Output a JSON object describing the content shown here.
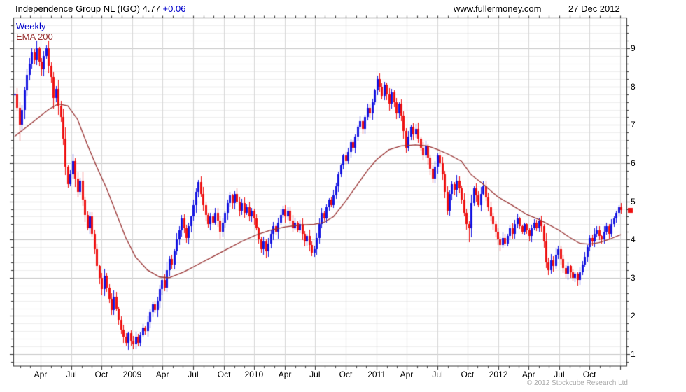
{
  "header": {
    "title": "Independence Group NL (IGO) 4.77",
    "change": "+0.06",
    "website": "www.fullermoney.com",
    "date": "27 Dec 2012"
  },
  "legend": {
    "timeframe": "Weekly",
    "indicator": "EMA 200"
  },
  "footer": {
    "copyright": "© 2012 Stockcube Research Ltd"
  },
  "colors": {
    "up_candle": "#1414e0",
    "down_candle": "#ee1111",
    "ema_line": "#993333",
    "accent_blue": "#0000cc",
    "grid_minor": "#eeeeee",
    "grid_major": "#c6c6c6",
    "grid_vertical": "#d6d6d6",
    "axis_border": "#333333",
    "label_gray": "#aaaaaa"
  },
  "chart_data": {
    "type": "candlestick",
    "title": "Independence Group NL (IGO)",
    "timeframe": "Weekly",
    "last_price": 4.77,
    "change": 0.06,
    "ylim": [
      0.69,
      9.8
    ],
    "y_major_ticks": [
      1,
      2,
      3,
      4,
      5,
      6,
      7,
      8,
      9
    ],
    "y_minor_step": 0.2,
    "grid": "on",
    "weeks": 252,
    "x_quarter_gridlines": [
      {
        "label": "Apr",
        "week": 10.7
      },
      {
        "label": "Jul",
        "week": 23.5
      },
      {
        "label": "Oct",
        "week": 35.9
      },
      {
        "label": "2009",
        "week": 48.7
      },
      {
        "label": "Apr",
        "week": 61.2
      },
      {
        "label": "Jul",
        "week": 73.9
      },
      {
        "label": "Oct",
        "week": 86.7
      },
      {
        "label": "2010",
        "week": 99.1
      },
      {
        "label": "Apr",
        "week": 111.9
      },
      {
        "label": "Jul",
        "week": 124.3
      },
      {
        "label": "Oct",
        "week": 137.1
      },
      {
        "label": "2011",
        "week": 149.9
      },
      {
        "label": "Apr",
        "week": 162.3
      },
      {
        "label": "Jul",
        "week": 175.1
      },
      {
        "label": "Oct",
        "week": 187.5
      },
      {
        "label": "2012",
        "week": 200.3
      },
      {
        "label": "Apr",
        "week": 212.8
      },
      {
        "label": "Jul",
        "week": 225.5
      },
      {
        "label": "Oct",
        "week": 238.0
      },
      {
        "label": "",
        "week": 250.7
      }
    ],
    "open_rule": "open equals previous close",
    "closes": [
      7.8,
      7.45,
      7.0,
      7.4,
      7.9,
      8.3,
      8.6,
      8.9,
      8.7,
      9.0,
      8.65,
      8.45,
      8.8,
      9.0,
      8.55,
      8.25,
      7.7,
      7.95,
      7.5,
      7.2,
      6.65,
      5.9,
      5.45,
      5.7,
      6.05,
      5.6,
      5.25,
      5.55,
      5.05,
      4.65,
      4.3,
      4.6,
      4.15,
      3.75,
      3.3,
      3.0,
      2.7,
      3.05,
      2.75,
      2.45,
      2.15,
      2.5,
      2.2,
      1.9,
      1.65,
      1.45,
      1.3,
      1.55,
      1.35,
      1.25,
      1.45,
      1.3,
      1.5,
      1.7,
      1.6,
      1.85,
      2.1,
      2.3,
      2.15,
      2.4,
      2.7,
      2.95,
      2.75,
      3.2,
      3.5,
      3.35,
      3.7,
      4.0,
      4.25,
      4.55,
      4.3,
      4.05,
      4.35,
      4.6,
      4.9,
      5.25,
      5.5,
      5.2,
      4.9,
      4.65,
      4.4,
      4.6,
      4.45,
      4.7,
      4.5,
      4.2,
      4.45,
      4.7,
      4.95,
      5.15,
      4.95,
      5.2,
      5.0,
      4.75,
      4.95,
      4.7,
      4.85,
      4.6,
      4.75,
      4.55,
      4.3,
      4.0,
      3.75,
      3.95,
      3.7,
      3.9,
      4.15,
      4.35,
      4.2,
      4.45,
      4.65,
      4.8,
      4.6,
      4.75,
      4.5,
      4.3,
      4.45,
      4.25,
      4.4,
      4.15,
      3.95,
      4.1,
      3.85,
      3.65,
      3.75,
      4.05,
      4.4,
      4.7,
      4.55,
      4.85,
      5.05,
      4.9,
      5.15,
      5.4,
      5.7,
      5.95,
      6.2,
      6.05,
      6.3,
      6.55,
      6.4,
      6.7,
      6.95,
      7.1,
      6.9,
      7.2,
      7.45,
      7.3,
      7.6,
      7.9,
      8.2,
      8.0,
      7.75,
      8.05,
      7.8,
      7.55,
      7.85,
      7.6,
      7.3,
      7.55,
      7.25,
      6.85,
      6.4,
      6.7,
      6.95,
      6.75,
      6.9,
      6.65,
      6.4,
      6.2,
      6.45,
      6.15,
      5.85,
      5.6,
      5.9,
      6.2,
      6.0,
      5.7,
      5.25,
      4.75,
      5.2,
      5.45,
      5.3,
      5.55,
      5.35,
      5.05,
      4.7,
      4.4,
      4.3,
      4.95,
      5.35,
      5.15,
      4.9,
      5.2,
      5.4,
      5.1,
      4.85,
      4.6,
      4.4,
      4.2,
      4.0,
      3.85,
      4.05,
      3.9,
      4.1,
      4.3,
      4.15,
      4.4,
      4.55,
      4.35,
      4.2,
      4.4,
      4.25,
      4.1,
      4.3,
      4.45,
      4.3,
      4.5,
      4.35,
      3.95,
      3.4,
      3.2,
      3.45,
      3.3,
      3.6,
      3.75,
      3.5,
      3.25,
      3.1,
      3.3,
      3.15,
      3.0,
      3.1,
      2.95,
      3.15,
      3.35,
      3.55,
      3.8,
      4.05,
      3.95,
      4.15,
      4.25,
      4.1,
      4.0,
      4.2,
      4.35,
      4.15,
      4.4,
      4.55,
      4.7,
      4.85,
      4.77
    ],
    "spike_highs": {
      "9": 9.2,
      "13": 9.05,
      "251": 4.95
    },
    "spike_lows": {
      "2": 6.6,
      "188": 3.95
    },
    "ema200": {
      "label": "EMA 200",
      "anchors": [
        [
          0,
          6.7
        ],
        [
          8,
          7.1
        ],
        [
          14,
          7.4
        ],
        [
          18,
          7.55
        ],
        [
          22,
          7.5
        ],
        [
          26,
          7.15
        ],
        [
          30,
          6.5
        ],
        [
          34,
          5.9
        ],
        [
          38,
          5.35
        ],
        [
          42,
          4.7
        ],
        [
          46,
          4.05
        ],
        [
          50,
          3.55
        ],
        [
          55,
          3.2
        ],
        [
          60,
          3.02
        ],
        [
          64,
          3.0
        ],
        [
          70,
          3.15
        ],
        [
          76,
          3.35
        ],
        [
          82,
          3.55
        ],
        [
          88,
          3.75
        ],
        [
          94,
          3.95
        ],
        [
          100,
          4.12
        ],
        [
          106,
          4.25
        ],
        [
          112,
          4.33
        ],
        [
          118,
          4.38
        ],
        [
          124,
          4.4
        ],
        [
          128,
          4.45
        ],
        [
          132,
          4.6
        ],
        [
          137,
          5.0
        ],
        [
          142,
          5.45
        ],
        [
          146,
          5.8
        ],
        [
          150,
          6.1
        ],
        [
          155,
          6.35
        ],
        [
          160,
          6.45
        ],
        [
          166,
          6.48
        ],
        [
          171,
          6.45
        ],
        [
          175,
          6.36
        ],
        [
          180,
          6.22
        ],
        [
          185,
          6.05
        ],
        [
          189,
          5.7
        ],
        [
          194,
          5.45
        ],
        [
          200,
          5.12
        ],
        [
          206,
          4.9
        ],
        [
          212,
          4.66
        ],
        [
          218,
          4.5
        ],
        [
          225,
          4.26
        ],
        [
          230,
          4.05
        ],
        [
          234,
          3.9
        ],
        [
          238,
          3.88
        ],
        [
          242,
          3.92
        ],
        [
          246,
          4.0
        ],
        [
          251,
          4.13
        ]
      ]
    },
    "price_axis_marker": {
      "value": 4.77,
      "color": "#ee1111"
    }
  }
}
